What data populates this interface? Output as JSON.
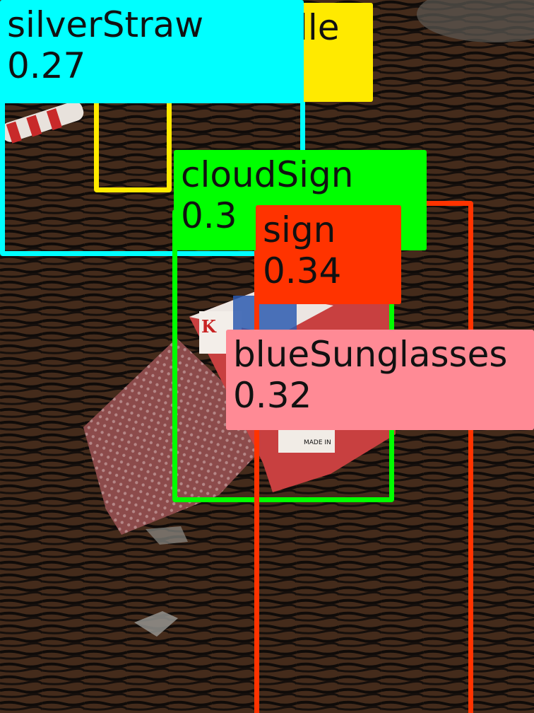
{
  "detections": [
    {
      "label": "lle",
      "score": "",
      "color": "#ffea00"
    },
    {
      "label": "silverStraw",
      "score": "0.27",
      "color": "#00ffff"
    },
    {
      "label": "cloudSign",
      "score": "0.3",
      "color": "#00ff00"
    },
    {
      "label": "sign",
      "score": "0.34",
      "color": "#ff3300"
    },
    {
      "label": "blueSunglasses",
      "score": "0.32",
      "color": "#ff8a95"
    }
  ],
  "card": {
    "corner_letter": "K",
    "box_text": "MADE IN"
  }
}
